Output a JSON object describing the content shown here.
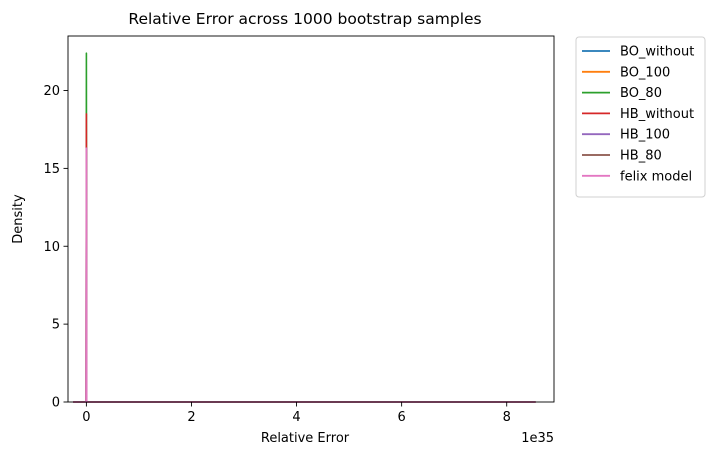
{
  "chart_data": {
    "type": "line",
    "title": "Relative Error across 1000 bootstrap samples",
    "xlabel": "Relative Error",
    "ylabel": "Density",
    "x_offset_label": "1e35",
    "xlim": [
      -0.35,
      8.9
    ],
    "ylim": [
      0,
      23.5
    ],
    "x_ticks": [
      0,
      2,
      4,
      6,
      8
    ],
    "y_ticks": [
      0,
      5,
      10,
      15,
      20,
      25
    ],
    "grid": false,
    "legend_position": "outside-top-right",
    "series": [
      {
        "name": "BO_without",
        "color": "#1f77b4",
        "x": [
          -0.25,
          -0.01,
          0.0,
          0.01,
          5.6
        ],
        "y": [
          0,
          0,
          0.02,
          0,
          0
        ]
      },
      {
        "name": "BO_100",
        "color": "#ff7f0e",
        "x": [
          -0.25,
          -0.01,
          0.0,
          0.01,
          8.55
        ],
        "y": [
          0,
          0,
          0.02,
          0,
          0
        ]
      },
      {
        "name": "BO_80",
        "color": "#2ca02c",
        "x": [
          -0.25,
          -0.005,
          0.0,
          0.005,
          8.55
        ],
        "y": [
          0,
          0,
          22.4,
          0,
          0
        ]
      },
      {
        "name": "HB_without",
        "color": "#d62728",
        "x": [
          -0.25,
          -0.005,
          0.0,
          0.005,
          8.55
        ],
        "y": [
          0,
          0,
          18.5,
          0,
          0
        ]
      },
      {
        "name": "HB_100",
        "color": "#9467bd",
        "x": [
          -0.25,
          -0.005,
          0.0,
          0.005,
          8.55
        ],
        "y": [
          0,
          0,
          16.3,
          0,
          0
        ]
      },
      {
        "name": "HB_80",
        "color": "#8c564b",
        "x": [
          -0.25,
          -0.005,
          0.0,
          0.005,
          8.55
        ],
        "y": [
          0,
          0,
          16.3,
          0,
          0
        ]
      },
      {
        "name": "felix model",
        "color": "#e377c2",
        "x": [
          -0.25,
          -0.005,
          0.0,
          0.005,
          8.55
        ],
        "y": [
          0,
          0,
          16.3,
          0,
          0
        ]
      }
    ]
  }
}
